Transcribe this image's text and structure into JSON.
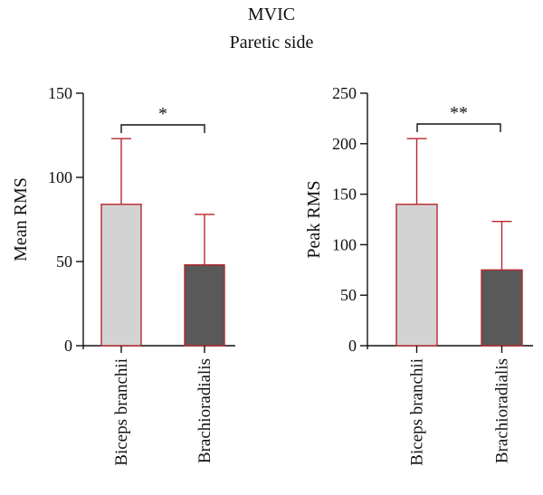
{
  "title": "MVIC",
  "subtitle": "Paretic side",
  "chart_data": [
    {
      "type": "bar",
      "ylabel": "Mean RMS",
      "categories": [
        "Biceps branchii",
        "Brachioradialis"
      ],
      "values": [
        84,
        48
      ],
      "errors": [
        39,
        30
      ],
      "ylim": [
        0,
        150
      ],
      "yticks": [
        0,
        50,
        100,
        150
      ],
      "significance": "*",
      "grid": false
    },
    {
      "type": "bar",
      "ylabel": "Peak RMS",
      "categories": [
        "Biceps branchii",
        "Brachioradialis"
      ],
      "values": [
        140,
        75
      ],
      "errors": [
        65,
        48
      ],
      "ylim": [
        0,
        250
      ],
      "yticks": [
        0,
        50,
        100,
        150,
        200,
        250
      ],
      "significance": "**",
      "grid": false
    }
  ],
  "colors": {
    "bar_fills": [
      "#d3d3d3",
      "#595959"
    ],
    "bar_outline": "#b7272d",
    "error_bar": "#b7272d",
    "axis": "#111111"
  }
}
